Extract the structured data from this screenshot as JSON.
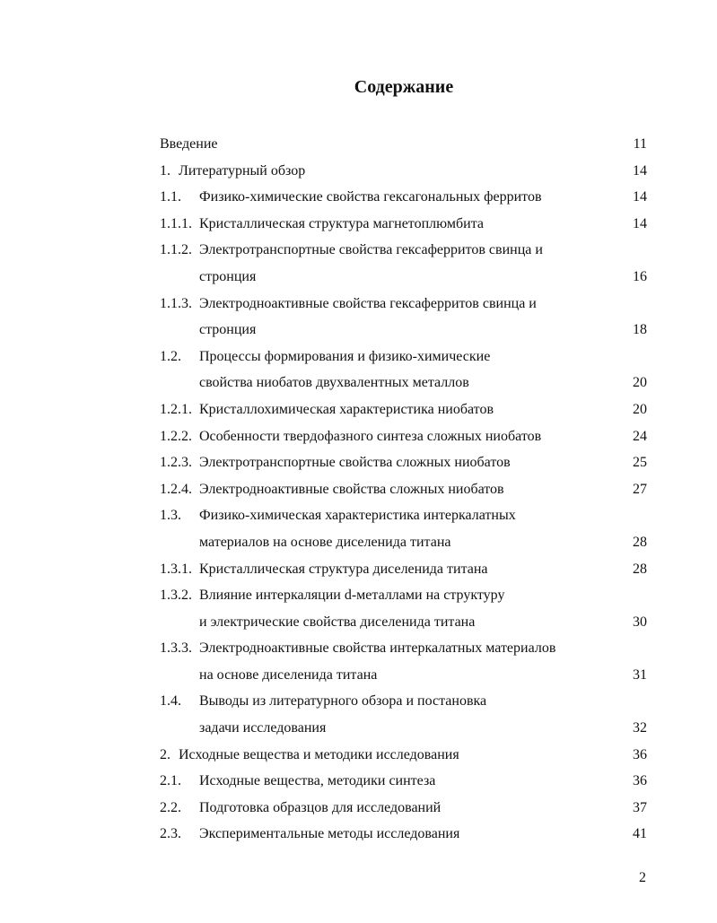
{
  "title": "Содержание",
  "entries": [
    {
      "num": "",
      "kind": "plain",
      "lines": [
        "Введение"
      ],
      "page": "11"
    },
    {
      "num": "1.",
      "kind": "chap",
      "lines": [
        "Литературный обзор"
      ],
      "page": "14"
    },
    {
      "num": "1.1.",
      "kind": "sec",
      "lines": [
        "Физико-химические свойства гексагональных ферритов"
      ],
      "page": "14"
    },
    {
      "num": "1.1.1.",
      "kind": "sec",
      "lines": [
        "Кристаллическая структура магнетоплюмбита"
      ],
      "page": "14"
    },
    {
      "num": "1.1.2.",
      "kind": "sec",
      "lines": [
        "Электротранспортные свойства гексаферритов свинца и",
        "стронция"
      ],
      "page": "16"
    },
    {
      "num": "1.1.3.",
      "kind": "sec",
      "lines": [
        "Электродноактивные свойства гексаферритов свинца и",
        "стронция"
      ],
      "page": "18"
    },
    {
      "num": "1.2.",
      "kind": "sec",
      "lines": [
        "Процессы формирования и физико-химические",
        "свойства ниобатов двухвалентных металлов"
      ],
      "page": "20"
    },
    {
      "num": "1.2.1.",
      "kind": "sec",
      "lines": [
        "Кристаллохимическая характеристика ниобатов"
      ],
      "page": "20"
    },
    {
      "num": "1.2.2.",
      "kind": "sec",
      "lines": [
        "Особенности твердофазного синтеза сложных ниобатов"
      ],
      "page": "24"
    },
    {
      "num": "1.2.3.",
      "kind": "sec",
      "lines": [
        "Электротранспортные свойства сложных ниобатов"
      ],
      "page": "25"
    },
    {
      "num": "1.2.4.",
      "kind": "sec",
      "lines": [
        "Электродноактивные свойства сложных ниобатов"
      ],
      "page": "27"
    },
    {
      "num": "1.3.",
      "kind": "sec",
      "lines": [
        "Физико-химическая характеристика интеркалатных",
        "материалов на основе диселенида титана"
      ],
      "page": "28"
    },
    {
      "num": "1.3.1.",
      "kind": "sec",
      "lines": [
        "Кристаллическая структура диселенида титана"
      ],
      "page": "28"
    },
    {
      "num": "1.3.2.",
      "kind": "sec",
      "lines": [
        "Влияние интеркаляции d-металлами на структуру",
        "и электрические свойства диселенида титана"
      ],
      "page": "30"
    },
    {
      "num": "1.3.3.",
      "kind": "sec",
      "lines": [
        "Электродноактивные свойства интеркалатных материалов",
        "на основе диселенида титана"
      ],
      "page": "31"
    },
    {
      "num": "1.4.",
      "kind": "sec",
      "lines": [
        "Выводы из литературного обзора и постановка",
        "задачи исследования"
      ],
      "page": "32"
    },
    {
      "num": "2.",
      "kind": "chap",
      "lines": [
        "Исходные вещества и методики исследования"
      ],
      "page": "36"
    },
    {
      "num": "2.1.",
      "kind": "sec",
      "lines": [
        "Исходные вещества, методики синтеза"
      ],
      "page": "36"
    },
    {
      "num": "2.2.",
      "kind": "sec",
      "lines": [
        "Подготовка образцов для исследований"
      ],
      "page": "37"
    },
    {
      "num": "2.3.",
      "kind": "sec",
      "lines": [
        "Экспериментальные методы исследования"
      ],
      "page": "41"
    }
  ],
  "page_number": "2"
}
